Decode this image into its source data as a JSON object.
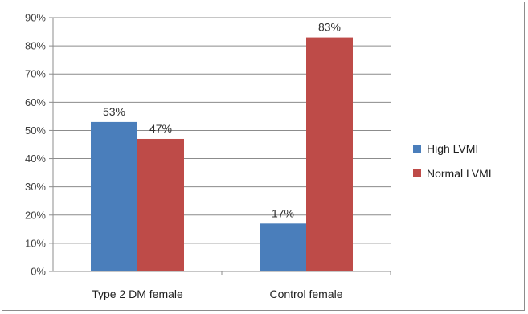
{
  "chart_data": {
    "type": "bar",
    "categories": [
      "Type 2 DM female",
      "Control female"
    ],
    "series": [
      {
        "name": "High LVMI",
        "values": [
          53,
          17
        ],
        "labels": [
          "53%",
          "17%"
        ],
        "color": "#4a7ebb"
      },
      {
        "name": "Normal LVMI",
        "values": [
          47,
          83
        ],
        "labels": [
          "47%",
          "83%"
        ],
        "color": "#be4b48"
      }
    ],
    "ylim": [
      0,
      90
    ],
    "y_ticks": [
      "0%",
      "10%",
      "20%",
      "30%",
      "40%",
      "50%",
      "60%",
      "70%",
      "80%",
      "90%"
    ],
    "grid": true,
    "legend_position": "right"
  }
}
